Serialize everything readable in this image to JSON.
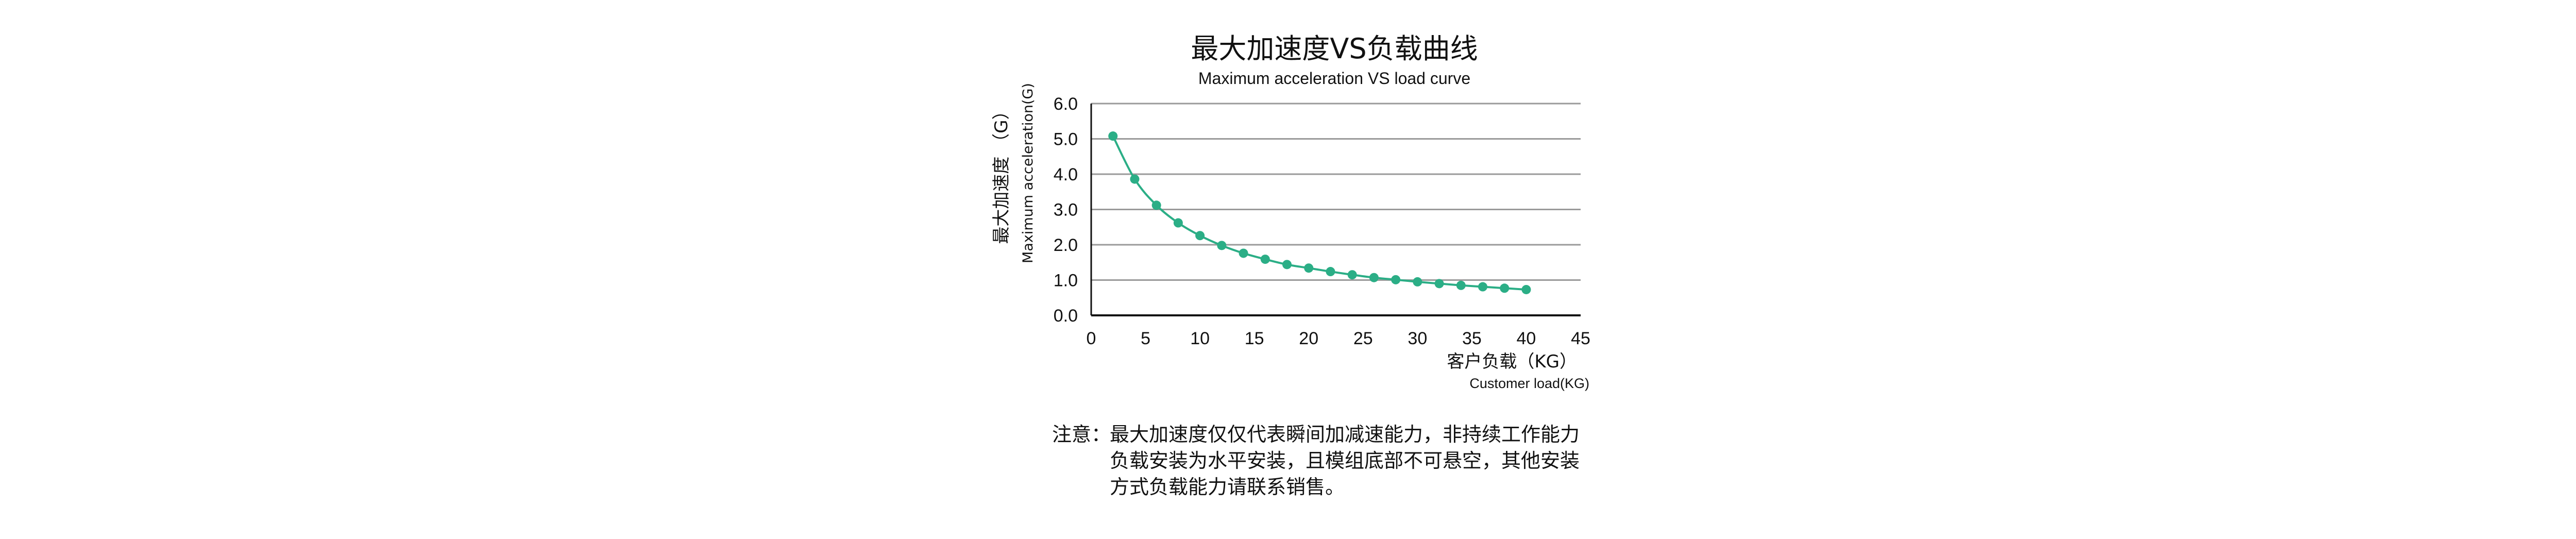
{
  "chart_data": {
    "type": "line",
    "title": "最大加速度VS负载曲线",
    "subtitle": "Maximum acceleration VS load curve",
    "ylabel": "最大加速度 （G）",
    "ylabel_en": "Maximum acceleration(G)",
    "xlabel": "客户负载（KG）",
    "xlabel_en": "Customer load(KG)",
    "xlim": [
      0,
      45
    ],
    "ylim": [
      0,
      6
    ],
    "x_ticks": [
      "0",
      "5",
      "10",
      "15",
      "20",
      "25",
      "30",
      "35",
      "40",
      "45"
    ],
    "y_ticks": [
      "0.0",
      "1.0",
      "2.0",
      "3.0",
      "4.0",
      "5.0",
      "6.0"
    ],
    "grid": true,
    "series": [
      {
        "name": "Maximum acceleration",
        "color": "#2bae86",
        "x": [
          2,
          4,
          6,
          8,
          10,
          12,
          14,
          16,
          18,
          20,
          22,
          24,
          26,
          28,
          30,
          32,
          34,
          36,
          38,
          40
        ],
        "y": [
          5.08,
          3.86,
          3.12,
          2.62,
          2.26,
          1.98,
          1.76,
          1.59,
          1.44,
          1.34,
          1.24,
          1.15,
          1.07,
          1.01,
          0.95,
          0.9,
          0.85,
          0.81,
          0.77,
          0.73
        ]
      }
    ]
  },
  "note": {
    "label": "注意：",
    "lines": [
      "最大加速度仅仅代表瞬间加减速能力，非持续工作能力",
      "负载安装为水平安装，且模组底部不可悬空，其他安装",
      "方式负载能力请联系销售。"
    ]
  }
}
